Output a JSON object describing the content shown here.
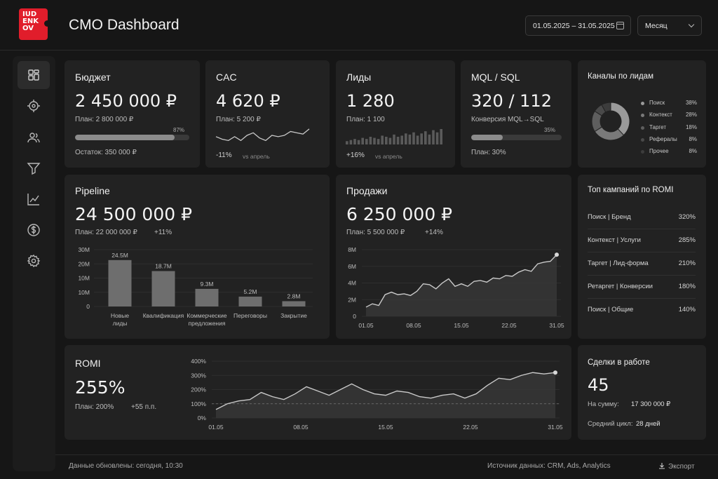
{
  "app": {
    "logo_text": [
      "IUD",
      "ENK",
      "OV"
    ],
    "title": "CMO Dashboard"
  },
  "header": {
    "date_range": "01.05.2025 – 31.05.2025",
    "period_select": "Месяц"
  },
  "sidebar": {
    "items": [
      {
        "icon": "dashboard-icon",
        "active": true
      },
      {
        "icon": "target-icon",
        "active": false
      },
      {
        "icon": "users-icon",
        "active": false
      },
      {
        "icon": "funnel-icon",
        "active": false
      },
      {
        "icon": "line-chart-icon",
        "active": false
      },
      {
        "icon": "dollar-icon",
        "active": false
      },
      {
        "icon": "settings-icon",
        "active": false
      }
    ]
  },
  "budget": {
    "title": "Бюджет",
    "value": "2 450 000 ₽",
    "plan": "План: 2 800 000 ₽",
    "progress": 0.87,
    "progress_label": "87%",
    "remaining": "Остаток: 350 000 ₽"
  },
  "cac": {
    "title": "CAC",
    "value": "4 620 ₽",
    "plan": "План: 5 200 ₽",
    "delta": "-11%",
    "compare": "vs апрель"
  },
  "leads": {
    "title": "Лиды",
    "value": "1 280",
    "plan": "План: 1 100",
    "delta": "+16%",
    "compare": "vs апрель"
  },
  "mql": {
    "title": "MQL / SQL",
    "value": "320 / 112",
    "subtitle": "Конверсия MQL→SQL",
    "progress": 0.35,
    "progress_label": "35%",
    "plan": "План: 30%"
  },
  "channels": {
    "title": "Каналы по лидам",
    "items": [
      {
        "label": "Поиск",
        "value": "38%",
        "share": 38,
        "color": "#9a9a9a"
      },
      {
        "label": "Контекст",
        "value": "28%",
        "share": 28,
        "color": "#7a7a7a"
      },
      {
        "label": "Таргет",
        "value": "18%",
        "share": 18,
        "color": "#5e5e5e"
      },
      {
        "label": "Рефералы",
        "value": "8%",
        "share": 8,
        "color": "#4a4a4a"
      },
      {
        "label": "Прочее",
        "value": "8%",
        "share": 8,
        "color": "#3c3c3c"
      }
    ]
  },
  "pipeline": {
    "title": "Pipeline",
    "value": "24 500 000 ₽",
    "plan": "План: 22 000 000 ₽",
    "delta": "+11%"
  },
  "sales": {
    "title": "Продажи",
    "value": "6 250 000 ₽",
    "plan": "План: 5 500 000 ₽",
    "delta": "+14%"
  },
  "top_campaigns": {
    "title": "Топ кампаний по ROMI",
    "rows": [
      {
        "name": "Поиск | Бренд",
        "value": "320%"
      },
      {
        "name": "Контекст | Услуги",
        "value": "285%"
      },
      {
        "name": "Таргет | Лид-форма",
        "value": "210%"
      },
      {
        "name": "Ретаргет | Конверсии",
        "value": "180%"
      },
      {
        "name": "Поиск | Общие",
        "value": "140%"
      }
    ]
  },
  "romi": {
    "title": "ROMI",
    "value": "255%",
    "plan": "План: 200%",
    "delta": "+55 п.п."
  },
  "deals": {
    "title": "Сделки в работе",
    "value": "45",
    "sum_label": "На сумму:",
    "sum_value": "17 300 000 ₽",
    "cycle_label": "Средний цикл:",
    "cycle_value": "28 дней"
  },
  "footer": {
    "updated": "Данные обновлены: сегодня, 10:30",
    "source": "Источник данных: CRM, Ads, Analytics",
    "export": "Экспорт"
  },
  "chart_data": [
    {
      "id": "cac_sparkline",
      "type": "line",
      "values": [
        5.3,
        5.1,
        5.0,
        5.3,
        5.0,
        5.4,
        5.6,
        5.2,
        5.0,
        5.4,
        5.3,
        5.4,
        5.7,
        5.6,
        5.5,
        5.9
      ],
      "color": "#c8c8c8"
    },
    {
      "id": "leads_mini_bars",
      "type": "bar",
      "values": [
        3,
        4,
        5,
        4,
        6,
        5,
        7,
        6,
        5,
        8,
        7,
        6,
        9,
        7,
        8,
        10,
        9,
        11,
        8,
        10,
        12,
        9,
        13,
        11,
        14
      ],
      "color": "#5a5a5a"
    },
    {
      "id": "pipeline_funnel",
      "type": "bar",
      "categories": [
        "Новые лиды",
        "Квалификация",
        "Коммерческие предложения",
        "Переговоры",
        "Закрытие"
      ],
      "values": [
        24.5,
        18.7,
        9.3,
        5.2,
        2.8
      ],
      "value_labels": [
        "24.5M",
        "18.7M",
        "9.3M",
        "5.2M",
        "2.8M"
      ],
      "ylim": [
        0,
        30
      ],
      "yticks": [
        "0",
        "10M",
        "10M",
        "20M",
        "30M"
      ],
      "grid": true
    },
    {
      "id": "sales_trend",
      "type": "area",
      "x_ticks": [
        "01.05",
        "08.05",
        "15.05",
        "22.05",
        "31.05"
      ],
      "y_ticks": [
        "0",
        "2M",
        "4M",
        "6M",
        "8M"
      ],
      "ylim": [
        0,
        8
      ],
      "values": [
        1.1,
        1.5,
        1.3,
        2.6,
        2.9,
        2.6,
        2.7,
        2.5,
        3.0,
        3.9,
        3.8,
        3.3,
        4.0,
        4.5,
        3.6,
        3.9,
        3.6,
        4.2,
        4.3,
        4.1,
        4.6,
        4.5,
        4.9,
        4.8,
        5.3,
        5.6,
        5.4,
        6.3,
        6.5,
        6.6,
        7.4
      ],
      "grid": true
    },
    {
      "id": "romi_trend",
      "type": "area",
      "x_ticks": [
        "01.05",
        "08.05",
        "15.05",
        "22.05",
        "31.05"
      ],
      "y_ticks": [
        "0%",
        "100%",
        "200%",
        "300%",
        "400%"
      ],
      "ylim": [
        0,
        400
      ],
      "target": 100,
      "values": [
        60,
        100,
        120,
        130,
        180,
        150,
        130,
        170,
        220,
        190,
        160,
        200,
        240,
        200,
        170,
        160,
        190,
        180,
        150,
        140,
        160,
        170,
        140,
        170,
        230,
        280,
        270,
        300,
        320,
        310,
        320
      ],
      "grid": true
    }
  ]
}
